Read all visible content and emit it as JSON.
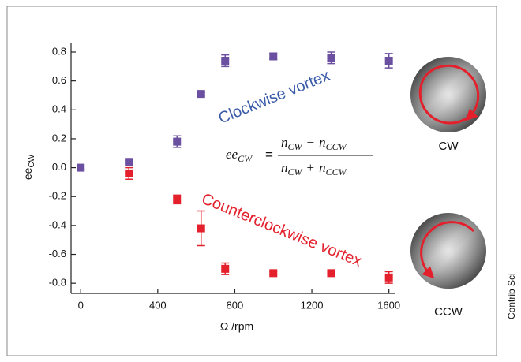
{
  "chart_data": {
    "type": "scatter",
    "x_label": "Ω /rpm",
    "y_label": "ee",
    "y_label_sub": "CW",
    "xlim": [
      -50,
      1630
    ],
    "ylim": [
      -0.87,
      0.86
    ],
    "xticks": [
      0,
      400,
      800,
      1200,
      1600
    ],
    "yticks": [
      0.8,
      0.6,
      0.4,
      0.2,
      {
        "value": 0,
        "label": "0.0"
      },
      -0.2,
      -0.4,
      -0.6,
      -0.8
    ],
    "series": [
      {
        "name": "Clockwise vortex",
        "color": "#6b4fa0",
        "x": [
          0,
          250,
          500,
          625,
          750,
          1000,
          1300,
          1600
        ],
        "values": [
          0.0,
          0.04,
          0.18,
          0.51,
          0.74,
          0.77,
          0.76,
          0.74
        ],
        "errors": [
          0.01,
          0.01,
          0.04,
          0.01,
          0.04,
          0.02,
          0.04,
          0.05
        ]
      },
      {
        "name": "Counterclockwise vortex",
        "color": "#e3202b",
        "x": [
          250,
          500,
          625,
          750,
          1000,
          1300,
          1600
        ],
        "values": [
          -0.04,
          -0.22,
          -0.42,
          -0.7,
          -0.73,
          -0.73,
          -0.76
        ],
        "errors": [
          0.04,
          0.03,
          0.12,
          0.04,
          0.01,
          0.01,
          0.04
        ]
      }
    ],
    "formula": {
      "lhs": "ee",
      "lhs_sub": "CW",
      "equals": "=",
      "numerator": [
        "n",
        "CW",
        "−",
        "n",
        "CCW"
      ],
      "denominator": [
        "n",
        "CW",
        "+",
        "n",
        "CCW"
      ]
    },
    "disk_labels": [
      "CW",
      "CCW"
    ],
    "credit": "Contrib Sci"
  }
}
